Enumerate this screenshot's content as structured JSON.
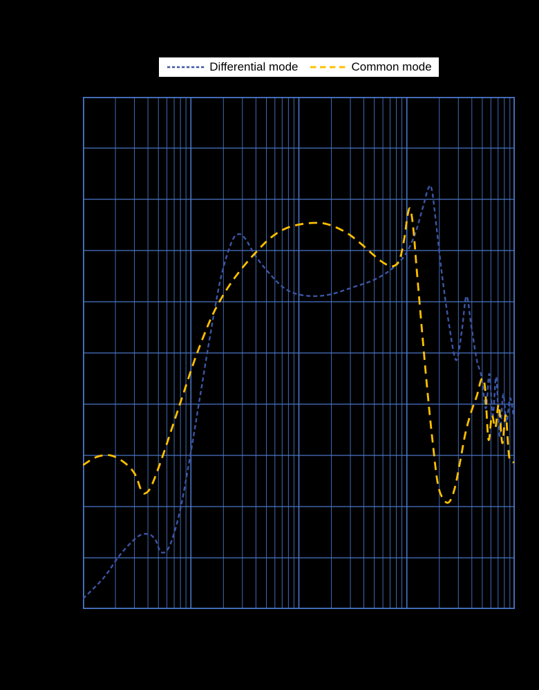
{
  "page": {
    "background_color": "#000000",
    "title_visible": false,
    "axis_tick_labels_visible": false
  },
  "colors": {
    "grid": "#4a77c9",
    "plot_border": "#4a77c9",
    "legend_background": "#ffffff",
    "legend_text": "#000000"
  },
  "chart_data": {
    "type": "line",
    "title": "",
    "xlabel": "",
    "ylabel": "",
    "x_axis": {
      "scale": "log",
      "decades": 4,
      "tick_labels_visible": false
    },
    "y_axis": {
      "scale": "linear",
      "divisions": 10,
      "tick_labels_visible": false
    },
    "grid": {
      "visible": true,
      "color": "#4a77c9",
      "background": "#000000"
    },
    "legend": {
      "position": "top",
      "background": "#ffffff",
      "entries": [
        "Differential mode",
        "Common mode"
      ]
    },
    "units_note": {
      "x": "fraction of log x-axis (0-1 across 4 decades, labels not legible in image)",
      "y": "grid divisions from bottom axis (0-10, labels not legible in image)"
    },
    "series": [
      {
        "name": "Differential mode",
        "color": "#3b55a5",
        "dash": [
          6,
          4
        ],
        "width": 2.4,
        "points": [
          [
            0.0,
            0.2
          ],
          [
            0.048,
            0.61
          ],
          [
            0.088,
            1.08
          ],
          [
            0.128,
            1.42
          ],
          [
            0.152,
            1.46
          ],
          [
            0.168,
            1.35
          ],
          [
            0.181,
            1.11
          ],
          [
            0.2,
            1.22
          ],
          [
            0.224,
            1.89
          ],
          [
            0.248,
            2.97
          ],
          [
            0.272,
            4.19
          ],
          [
            0.296,
            5.41
          ],
          [
            0.32,
            6.49
          ],
          [
            0.344,
            7.16
          ],
          [
            0.36,
            7.32
          ],
          [
            0.376,
            7.23
          ],
          [
            0.4,
            6.89
          ],
          [
            0.432,
            6.55
          ],
          [
            0.464,
            6.28
          ],
          [
            0.496,
            6.15
          ],
          [
            0.536,
            6.11
          ],
          [
            0.576,
            6.15
          ],
          [
            0.624,
            6.28
          ],
          [
            0.672,
            6.42
          ],
          [
            0.712,
            6.62
          ],
          [
            0.744,
            6.89
          ],
          [
            0.768,
            7.3
          ],
          [
            0.787,
            7.84
          ],
          [
            0.8,
            8.22
          ],
          [
            0.808,
            8.18
          ],
          [
            0.819,
            7.43
          ],
          [
            0.832,
            6.49
          ],
          [
            0.848,
            5.54
          ],
          [
            0.864,
            4.86
          ],
          [
            0.877,
            5.41
          ],
          [
            0.888,
            6.11
          ],
          [
            0.899,
            5.54
          ],
          [
            0.912,
            4.86
          ],
          [
            0.923,
            4.53
          ],
          [
            0.933,
            3.92
          ],
          [
            0.941,
            4.59
          ],
          [
            0.949,
            3.78
          ],
          [
            0.957,
            4.53
          ],
          [
            0.965,
            3.38
          ],
          [
            0.973,
            4.19
          ],
          [
            0.981,
            3.65
          ],
          [
            0.989,
            4.12
          ],
          [
            0.998,
            3.72
          ]
        ]
      },
      {
        "name": "Common mode",
        "color": "#ffc000",
        "dash": [
          12,
          8
        ],
        "width": 2.8,
        "points": [
          [
            0.0,
            2.81
          ],
          [
            0.032,
            2.97
          ],
          [
            0.064,
            3.0
          ],
          [
            0.096,
            2.86
          ],
          [
            0.12,
            2.64
          ],
          [
            0.136,
            2.3
          ],
          [
            0.147,
            2.27
          ],
          [
            0.16,
            2.43
          ],
          [
            0.184,
            2.97
          ],
          [
            0.208,
            3.58
          ],
          [
            0.232,
            4.19
          ],
          [
            0.256,
            4.8
          ],
          [
            0.28,
            5.34
          ],
          [
            0.304,
            5.81
          ],
          [
            0.336,
            6.28
          ],
          [
            0.368,
            6.65
          ],
          [
            0.4,
            6.96
          ],
          [
            0.432,
            7.23
          ],
          [
            0.464,
            7.41
          ],
          [
            0.496,
            7.5
          ],
          [
            0.536,
            7.54
          ],
          [
            0.568,
            7.51
          ],
          [
            0.608,
            7.36
          ],
          [
            0.64,
            7.16
          ],
          [
            0.672,
            6.92
          ],
          [
            0.696,
            6.76
          ],
          [
            0.717,
            6.69
          ],
          [
            0.733,
            6.82
          ],
          [
            0.744,
            7.23
          ],
          [
            0.752,
            7.7
          ],
          [
            0.758,
            7.81
          ],
          [
            0.765,
            7.43
          ],
          [
            0.773,
            6.62
          ],
          [
            0.784,
            5.54
          ],
          [
            0.797,
            4.32
          ],
          [
            0.81,
            3.24
          ],
          [
            0.822,
            2.43
          ],
          [
            0.835,
            2.14
          ],
          [
            0.848,
            2.09
          ],
          [
            0.861,
            2.36
          ],
          [
            0.874,
            2.91
          ],
          [
            0.886,
            3.45
          ],
          [
            0.899,
            3.85
          ],
          [
            0.912,
            4.16
          ],
          [
            0.923,
            4.49
          ],
          [
            0.931,
            4.32
          ],
          [
            0.939,
            3.31
          ],
          [
            0.947,
            3.78
          ],
          [
            0.955,
            3.54
          ],
          [
            0.963,
            3.99
          ],
          [
            0.971,
            3.24
          ],
          [
            0.979,
            3.78
          ],
          [
            0.987,
            2.97
          ],
          [
            0.998,
            2.86
          ]
        ]
      }
    ]
  }
}
